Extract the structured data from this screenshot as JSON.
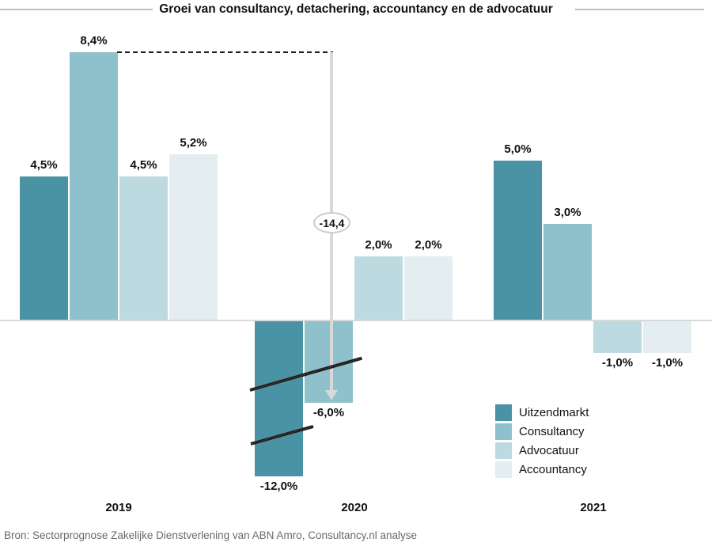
{
  "title": "Groei van consultancy, detachering, accountancy en de advocatuur",
  "source": "Bron: Sectorprognose Zakelijke Dienstverlening van ABN Amro, Consultancy.nl analyse",
  "annotation": {
    "drop_label": "-14,4"
  },
  "legend": {
    "items": [
      {
        "label": "Uitzendmarkt",
        "color": "#4a93a4"
      },
      {
        "label": "Consultancy",
        "color": "#8ec1cb"
      },
      {
        "label": "Advocatuur",
        "color": "#bcdae0"
      },
      {
        "label": "Accountancy",
        "color": "#e4eef0"
      }
    ]
  },
  "chart_data": {
    "type": "bar",
    "categories": [
      "2019",
      "2020",
      "2021"
    ],
    "series": [
      {
        "name": "Uitzendmarkt",
        "color": "#4a93a4",
        "values": [
          4.5,
          -12.0,
          5.0
        ],
        "labels": [
          "4,5%",
          "-12,0%",
          "5,0%"
        ]
      },
      {
        "name": "Consultancy",
        "color": "#8ec1cb",
        "values": [
          8.4,
          -6.0,
          3.0
        ],
        "labels": [
          "8,4%",
          "-6,0%",
          "3,0%"
        ]
      },
      {
        "name": "Advocatuur",
        "color": "#bcdae0",
        "values": [
          4.5,
          2.0,
          -1.0
        ],
        "labels": [
          "4,5%",
          "2,0%",
          "-1,0%"
        ]
      },
      {
        "name": "Accountancy",
        "color": "#e4eef0",
        "values": [
          5.2,
          2.0,
          -1.0
        ],
        "labels": [
          "5,2%",
          "2,0%",
          "-1,0%"
        ]
      }
    ],
    "annotations": [
      {
        "text": "-14,4",
        "type": "drop-arrow",
        "from_value": 8.4,
        "to_value": -6.0,
        "category": "2020"
      }
    ],
    "axis_breaks": [
      {
        "category": "2020",
        "series": [
          "Uitzendmarkt",
          "Consultancy"
        ]
      },
      {
        "category": "2020",
        "series": [
          "Uitzendmarkt"
        ]
      }
    ],
    "xlabel": "",
    "ylabel": "",
    "baseline": 0,
    "grid": false,
    "value_format": "dutch-percent",
    "legend_position": "bottom-right"
  }
}
